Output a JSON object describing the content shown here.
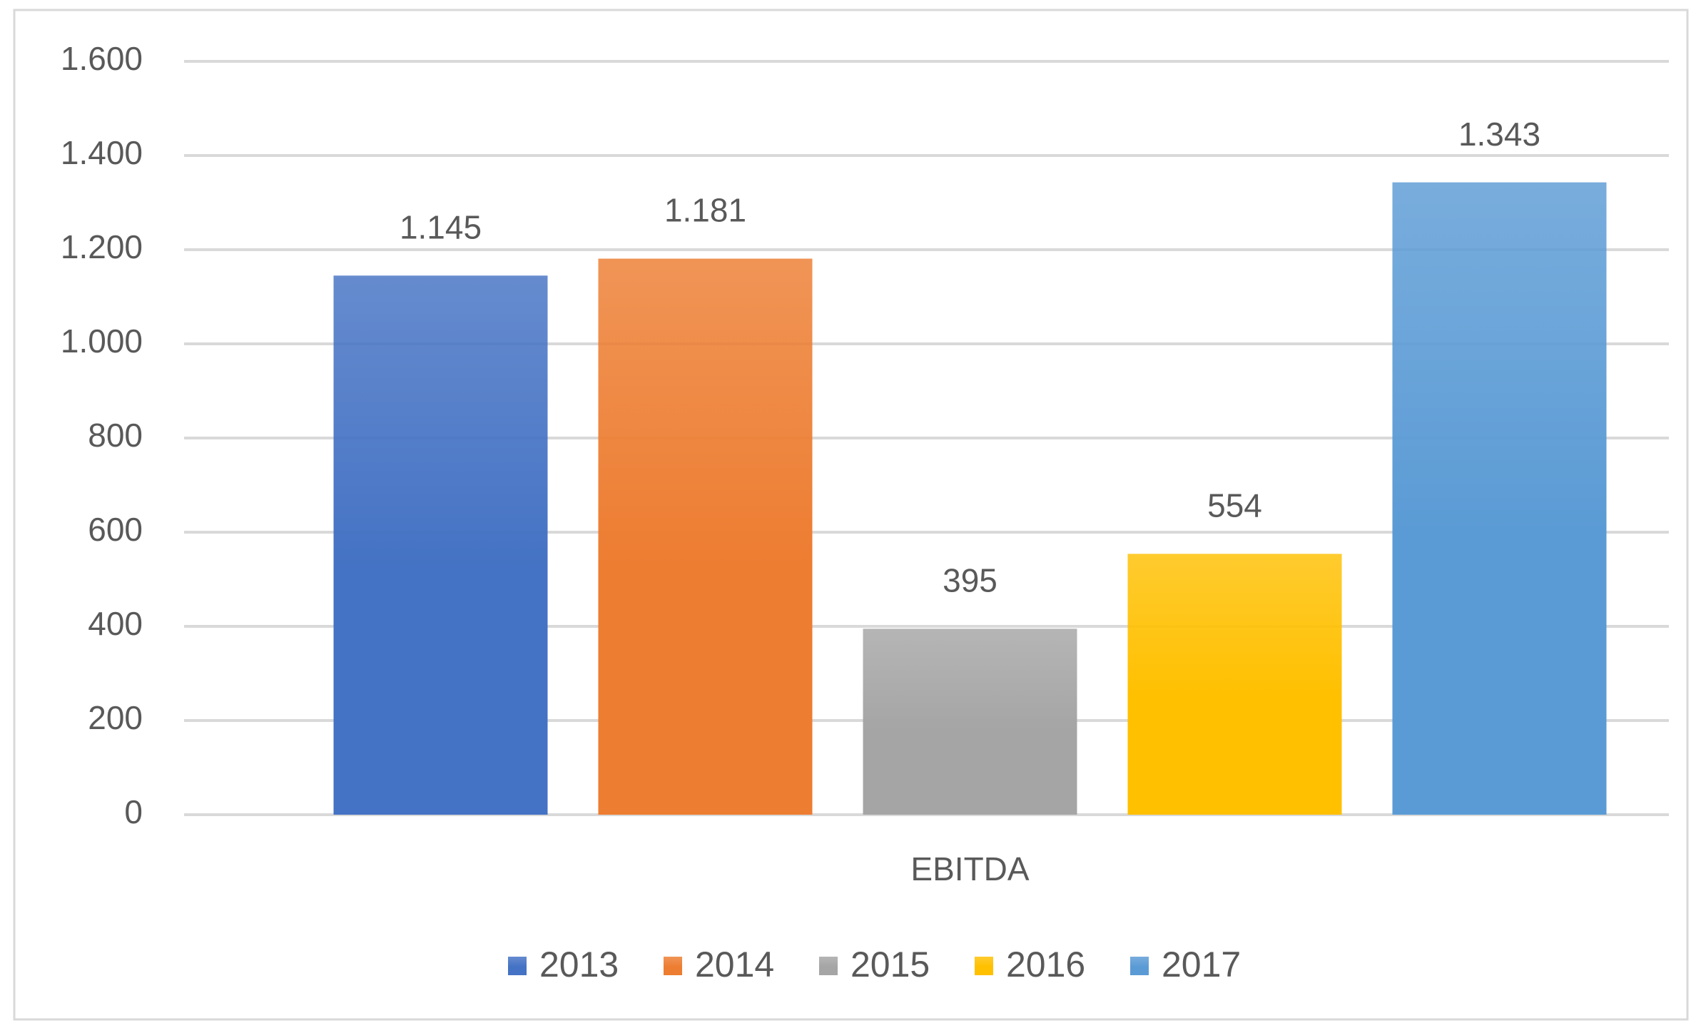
{
  "chart_data": {
    "type": "bar",
    "categories": [
      "EBITDA"
    ],
    "series": [
      {
        "name": "2013",
        "color": "#4472c4",
        "values": [
          1145
        ],
        "value_labels": [
          "1.145"
        ]
      },
      {
        "name": "2014",
        "color": "#ed7d31",
        "values": [
          1181
        ],
        "value_labels": [
          "1.181"
        ]
      },
      {
        "name": "2015",
        "color": "#a5a5a5",
        "values": [
          395
        ]
      },
      {
        "name": "2016",
        "color": "#ffc000",
        "values": [
          554
        ]
      },
      {
        "name": "2017",
        "color": "#5b9bd5",
        "values": [
          1343
        ],
        "value_labels": [
          "1.343"
        ]
      }
    ],
    "ylim": [
      0,
      1600
    ],
    "yticks": [
      0,
      200,
      400,
      600,
      800,
      {
        "value": 1000,
        "label": "1.000"
      },
      {
        "value": 1200,
        "label": "1.200"
      },
      {
        "value": 1400,
        "label": "1.400"
      },
      {
        "value": 1600,
        "label": "1.600"
      }
    ],
    "grid": true,
    "legend": "bottom"
  }
}
